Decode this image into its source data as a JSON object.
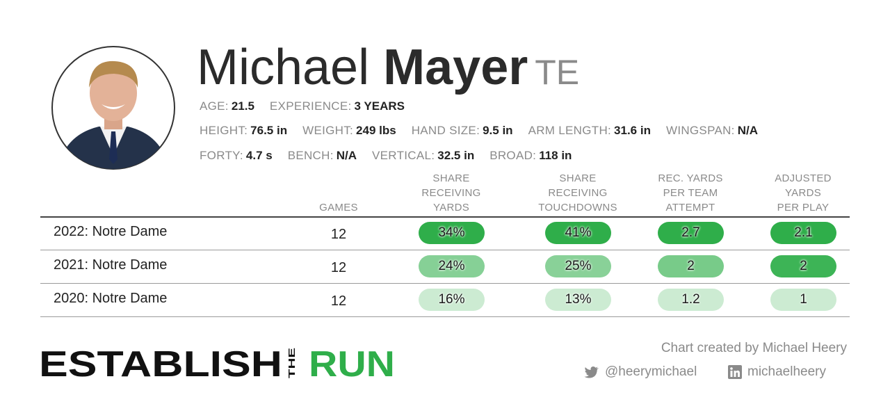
{
  "header": {
    "first_name": "Michael",
    "last_name": "Mayer",
    "position": "TE"
  },
  "info": [
    [
      {
        "label": "AGE:",
        "value": "21.5"
      },
      {
        "label": "EXPERIENCE:",
        "value": "3 YEARS"
      }
    ],
    [
      {
        "label": "HEIGHT:",
        "value": "76.5 in"
      },
      {
        "label": "WEIGHT:",
        "value": "249 lbs"
      },
      {
        "label": "HAND SIZE:",
        "value": "9.5 in"
      },
      {
        "label": "ARM LENGTH:",
        "value": "31.6 in"
      },
      {
        "label": "WINGSPAN:",
        "value": "N/A"
      }
    ],
    [
      {
        "label": "FORTY:",
        "value": "4.7 s"
      },
      {
        "label": "BENCH:",
        "value": "N/A"
      },
      {
        "label": "VERTICAL:",
        "value": "32.5 in"
      },
      {
        "label": "BROAD:",
        "value": "118 in"
      }
    ]
  ],
  "table": {
    "columns": [
      [
        "GAMES"
      ],
      [
        "SHARE",
        "RECEIVING",
        "YARDS"
      ],
      [
        "SHARE",
        "RECEIVING",
        "TOUCHDOWNS"
      ],
      [
        "REC. YARDS",
        "PER TEAM",
        "ATTEMPT"
      ],
      [
        "ADJUSTED",
        "YARDS",
        "PER PLAY"
      ]
    ],
    "rows": [
      [
        "2022: Notre Dame",
        "12",
        "34%",
        "41%",
        "2.7",
        "2.1"
      ],
      [
        "2021: Notre Dame",
        "12",
        "24%",
        "25%",
        "2",
        "2"
      ],
      [
        "2020: Notre Dame",
        "12",
        "16%",
        "13%",
        "1.2",
        "1"
      ]
    ]
  },
  "footer": {
    "logo": [
      "ESTABLISH",
      "THE",
      "RUN"
    ],
    "credit": "Chart created by Michael Heery",
    "twitter": "@heerymichael",
    "linkedin": "michaelheery"
  }
}
